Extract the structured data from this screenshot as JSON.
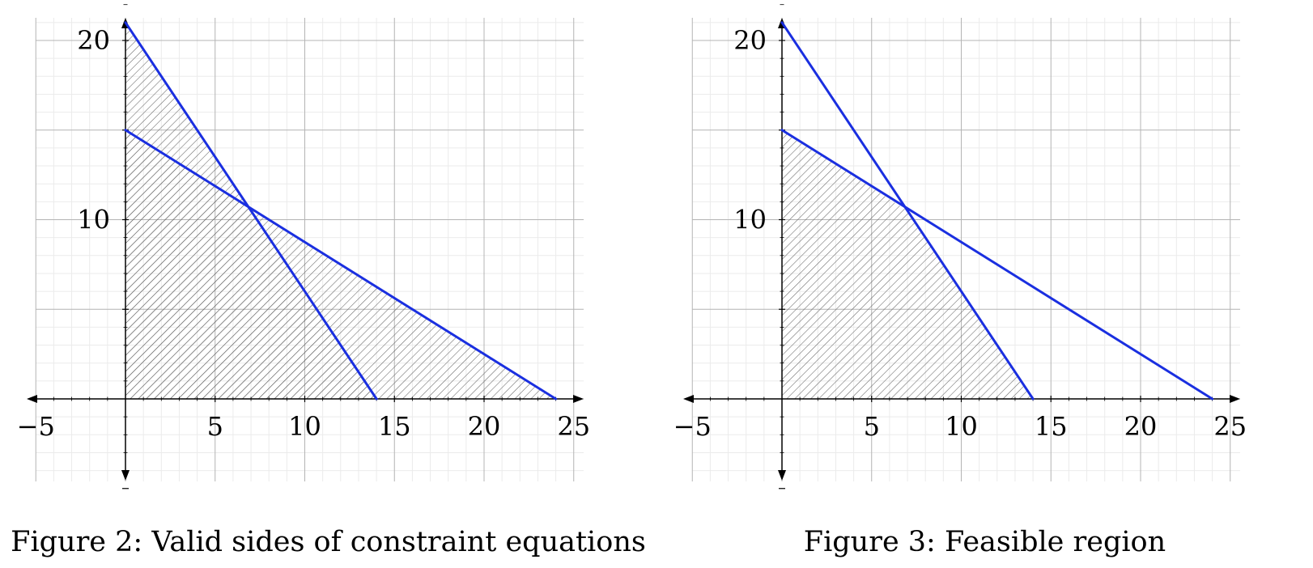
{
  "chart_data": [
    {
      "type": "line",
      "caption": "Figure 2: Valid sides of constraint equations",
      "xlim": [
        -5,
        25
      ],
      "ylim": [
        -5,
        25
      ],
      "grid": true,
      "x_ticks": [
        {
          "value": -5,
          "label": "−5"
        },
        {
          "value": 5,
          "label": "5"
        },
        {
          "value": 10,
          "label": "10"
        },
        {
          "value": 15,
          "label": "15"
        },
        {
          "value": 20,
          "label": "20"
        },
        {
          "value": 25,
          "label": "25"
        }
      ],
      "y_ticks": [
        {
          "value": 10,
          "label": "10"
        },
        {
          "value": 20,
          "label": "20"
        }
      ],
      "lines": [
        {
          "x": [
            0,
            14
          ],
          "y": [
            21,
            0
          ],
          "color": "#1a2fe0"
        },
        {
          "x": [
            0,
            24
          ],
          "y": [
            15,
            0
          ],
          "color": "#1a2fe0"
        }
      ],
      "hatched_regions": [
        {
          "x": [
            0,
            14,
            0
          ],
          "y": [
            0,
            0,
            21
          ]
        },
        {
          "x": [
            0,
            24,
            0
          ],
          "y": [
            0,
            0,
            15
          ]
        }
      ]
    },
    {
      "type": "line",
      "caption": "Figure 3: Feasible region",
      "xlim": [
        -5,
        25
      ],
      "ylim": [
        -5,
        25
      ],
      "grid": true,
      "x_ticks": [
        {
          "value": -5,
          "label": "−5"
        },
        {
          "value": 5,
          "label": "5"
        },
        {
          "value": 10,
          "label": "10"
        },
        {
          "value": 15,
          "label": "15"
        },
        {
          "value": 20,
          "label": "20"
        },
        {
          "value": 25,
          "label": "25"
        }
      ],
      "y_ticks": [
        {
          "value": 10,
          "label": "10"
        },
        {
          "value": 20,
          "label": "20"
        }
      ],
      "lines": [
        {
          "x": [
            0,
            14
          ],
          "y": [
            21,
            0
          ],
          "color": "#1a2fe0"
        },
        {
          "x": [
            0,
            24
          ],
          "y": [
            15,
            0
          ],
          "color": "#1a2fe0"
        }
      ],
      "hatched_regions": [
        {
          "x": [
            0,
            14,
            7,
            0
          ],
          "y": [
            0,
            0,
            10.5,
            15
          ]
        }
      ]
    }
  ]
}
